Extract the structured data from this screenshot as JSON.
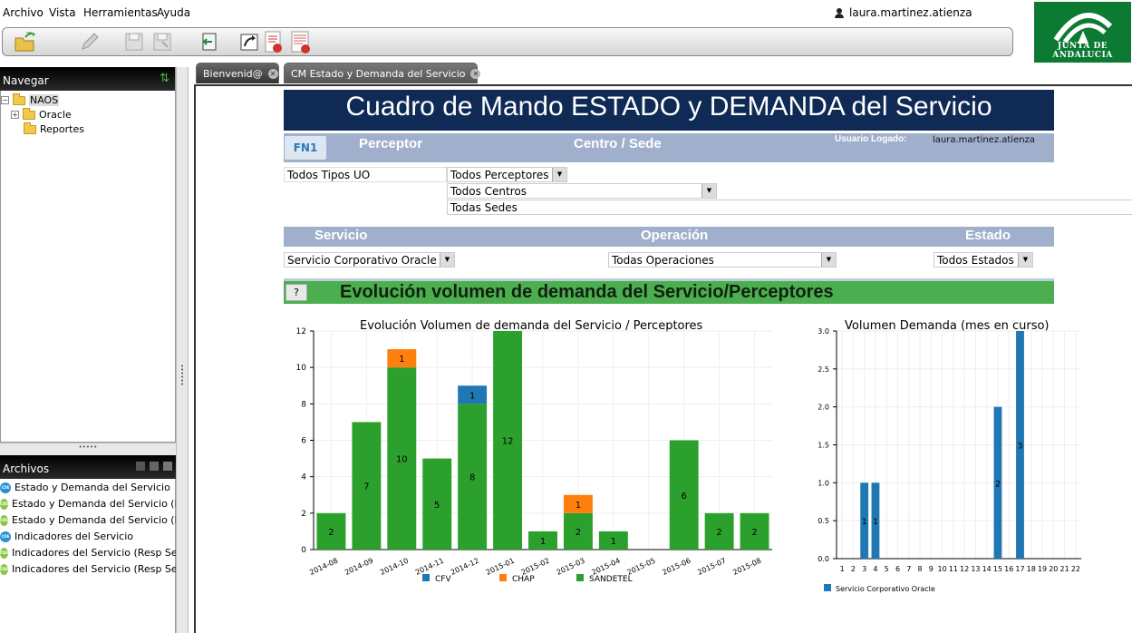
{
  "menu": [
    "Archivo",
    "Vista",
    "Herramientas",
    "Ayuda"
  ],
  "user": "laura.martinez.atienza",
  "logo_text": "JUNTA DE ANDALUCIA",
  "nav": {
    "title": "Navegar",
    "tree": [
      {
        "label": "NAOS",
        "level": 0
      },
      {
        "label": "Oracle",
        "level": 1
      },
      {
        "label": "Reportes",
        "level": 1
      }
    ]
  },
  "files": {
    "title": "Archivos",
    "items": [
      {
        "label": "Estado y Demanda del Servicio",
        "color": "#2a8fd6"
      },
      {
        "label": "Estado y Demanda del Servicio (Re",
        "color": "#8cc63f"
      },
      {
        "label": "Estado y Demanda del Servicio (Re",
        "color": "#8cc63f"
      },
      {
        "label": "Indicadores del Servicio",
        "color": "#2a8fd6"
      },
      {
        "label": "Indicadores del Servicio (Resp Ser",
        "color": "#8cc63f"
      },
      {
        "label": "Indicadores del Servicio (Resp Ser",
        "color": "#8cc63f"
      }
    ]
  },
  "tabs": [
    "Bienvenid@",
    "CM Estado y Demanda del Servicio"
  ],
  "dashboard": {
    "title": "Cuadro de Mando ESTADO y DEMANDA del Servicio",
    "fn1": "FN1",
    "perceptor_label": "Perceptor",
    "centro_label": "Centro / Sede",
    "usuario_label": "Usuario Logado:",
    "usuario_value": "laura.martinez.atienza",
    "tipos_uo": "Todos Tipos UO",
    "perceptores": "Todos Perceptores",
    "centros": "Todos Centros",
    "sedes": "Todas Sedes",
    "servicio_label": "Servicio",
    "operacion_label": "Operación",
    "estado_label": "Estado",
    "servicio_value": "Servicio Corporativo Oracle",
    "operacion_value": "Todas Operaciones",
    "estado_value": "Todos Estados",
    "help": "?",
    "section_title": "Evolución volumen de demanda del Servicio/Perceptores"
  },
  "chart_data": [
    {
      "type": "bar",
      "title": "Evolución Volumen de demanda del Servicio / Perceptores",
      "categories": [
        "2014-08",
        "2014-09",
        "2014-10",
        "2014-11",
        "2014-12",
        "2015-01",
        "2015-02",
        "2015-03",
        "2015-04",
        "2015-05",
        "2015-06",
        "2015-07",
        "2015-08"
      ],
      "series": [
        {
          "name": "SANDETEL",
          "color": "#2ca02c",
          "values": [
            2,
            7,
            10,
            5,
            8,
            12,
            1,
            2,
            1,
            0,
            6,
            2,
            2
          ]
        },
        {
          "name": "CFV",
          "color": "#1f77b4",
          "values": [
            0,
            0,
            0,
            0,
            1,
            0,
            0,
            0,
            0,
            0,
            0,
            0,
            0
          ]
        },
        {
          "name": "CHAP",
          "color": "#ff7f0e",
          "values": [
            0,
            0,
            1,
            0,
            0,
            0,
            0,
            1,
            0,
            0,
            0,
            0,
            0
          ]
        }
      ],
      "legend": [
        "CFV",
        "CHAP",
        "SANDETEL"
      ],
      "ylim": [
        0,
        12
      ],
      "yticks": [
        0,
        2,
        4,
        6,
        8,
        10,
        12
      ],
      "stacked": true,
      "grid": true
    },
    {
      "type": "bar",
      "title": "Volumen Demanda (mes en curso)",
      "categories": [
        "1",
        "2",
        "3",
        "4",
        "5",
        "6",
        "7",
        "8",
        "9",
        "10",
        "11",
        "12",
        "13",
        "14",
        "15",
        "16",
        "17",
        "18",
        "19",
        "20",
        "21",
        "22"
      ],
      "series": [
        {
          "name": "Servicio Corporativo Oracle",
          "color": "#1f77b4",
          "values": [
            0,
            0,
            1,
            1,
            0,
            0,
            0,
            0,
            0,
            0,
            0,
            0,
            0,
            0,
            2,
            0,
            3,
            0,
            0,
            0,
            0,
            0
          ]
        }
      ],
      "ylim": [
        0,
        3
      ],
      "yticks": [
        "0.0",
        "0.5",
        "1.0",
        "1.5",
        "2.0",
        "2.5",
        "3.0"
      ],
      "grid": true
    }
  ]
}
